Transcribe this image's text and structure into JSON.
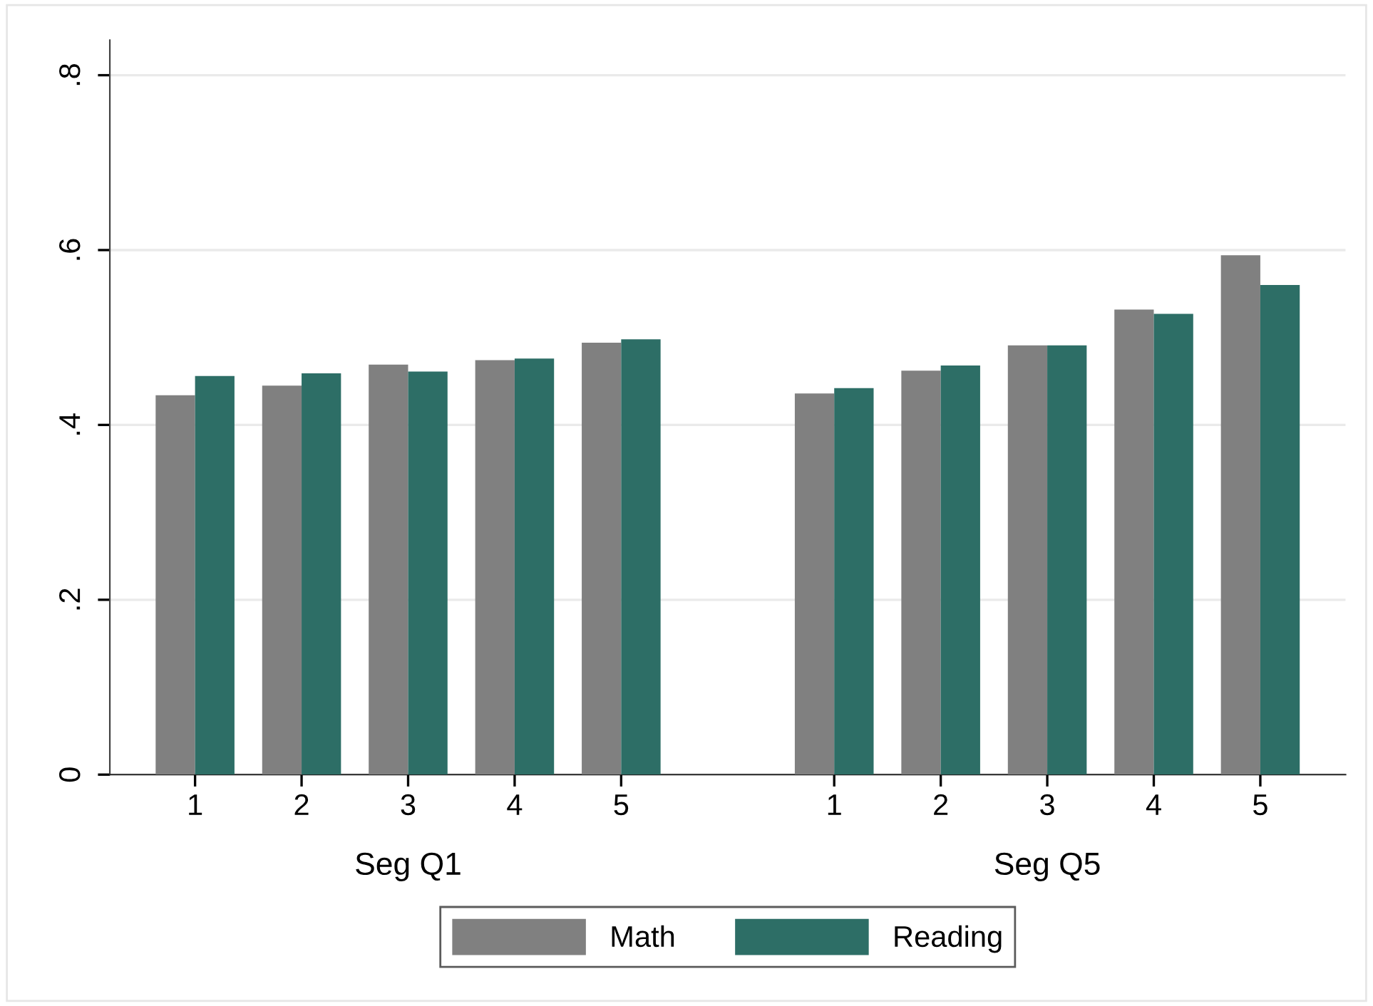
{
  "chart_data": {
    "type": "bar",
    "categories": [
      "1",
      "2",
      "3",
      "4",
      "5",
      null,
      "1",
      "2",
      "3",
      "4",
      "5"
    ],
    "series": [
      {
        "name": "Math",
        "color": "#808080",
        "values": [
          0.434,
          0.445,
          0.469,
          0.474,
          0.494,
          null,
          0.436,
          0.462,
          0.491,
          0.532,
          0.594
        ]
      },
      {
        "name": "Reading",
        "color": "#2d6e66",
        "values": [
          0.456,
          0.459,
          0.461,
          0.476,
          0.498,
          null,
          0.442,
          0.468,
          0.491,
          0.527,
          0.56
        ]
      }
    ],
    "annotations": [
      "Seg Q1",
      "Seg Q5"
    ],
    "ylim": [
      0,
      0.84
    ],
    "yticks": [
      {
        "value": 0,
        "label": "0"
      },
      {
        "value": 0.2,
        "label": ".2"
      },
      {
        "value": 0.4,
        "label": ".4"
      },
      {
        "value": 0.6,
        "label": ".6"
      },
      {
        "value": 0.8,
        "label": ".8"
      }
    ],
    "grid": "y",
    "legend": "bottom"
  }
}
